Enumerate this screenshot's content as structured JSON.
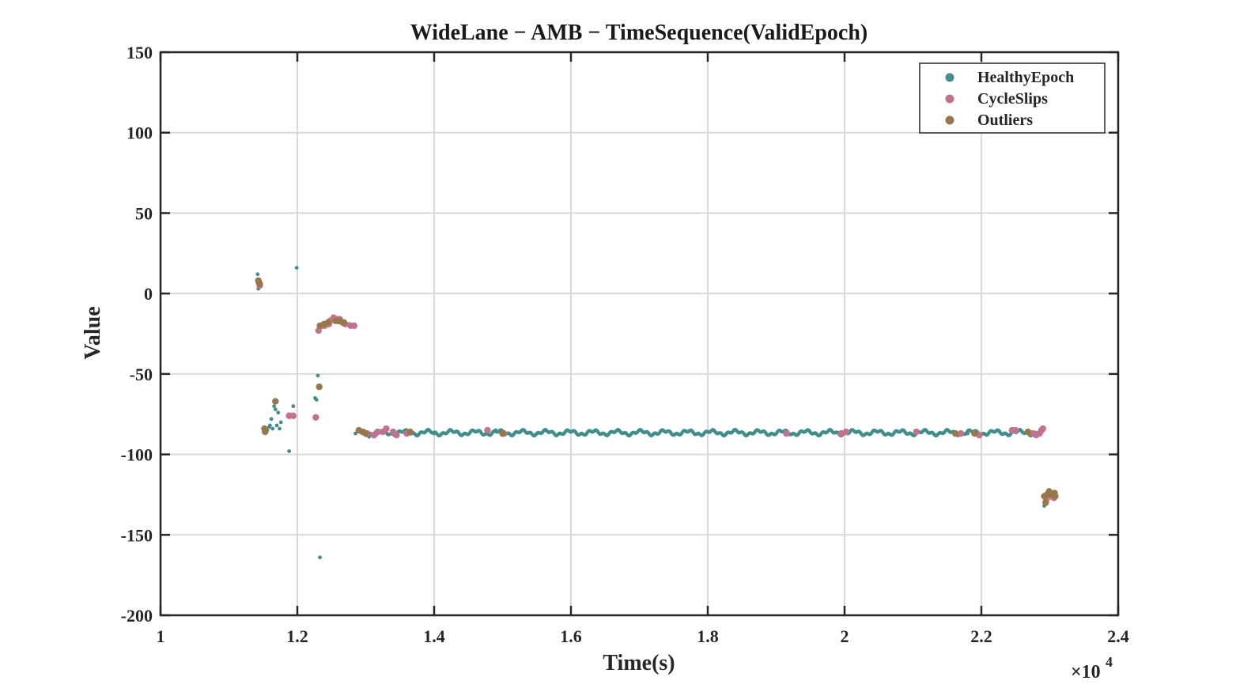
{
  "chart_data": {
    "type": "scatter",
    "title": "WideLane − AMB − TimeSequence(ValidEpoch)",
    "xlabel": "Time(s)",
    "ylabel": "Value",
    "x_multiplier_label": "×10",
    "x_multiplier_exponent": "4",
    "xlim": [
      10000,
      24000
    ],
    "ylim": [
      -200,
      150
    ],
    "xticks": [
      10000,
      12000,
      14000,
      16000,
      18000,
      20000,
      22000,
      24000
    ],
    "xtick_labels": [
      "1",
      "1.2",
      "1.4",
      "1.6",
      "1.8",
      "2",
      "2.2",
      "2.4"
    ],
    "yticks": [
      150,
      100,
      50,
      0,
      -50,
      -100,
      -150,
      -200
    ],
    "ytick_labels": [
      "150",
      "100",
      "50",
      "0",
      "-50",
      "-100",
      "-150",
      "-200"
    ],
    "grid": true,
    "legend_position": "top-right",
    "colors": {
      "HealthyEpoch": "#418e8a",
      "CycleSlips": "#c2728f",
      "Outliers": "#97784a",
      "grid": "#d9d9d9",
      "axis": "#262626"
    },
    "series": [
      {
        "name": "HealthyEpoch",
        "marker": "small-dot",
        "points": [
          [
            11420,
            12
          ],
          [
            11430,
            3
          ],
          [
            11440,
            6
          ],
          [
            11460,
            5
          ],
          [
            11560,
            -85
          ],
          [
            11590,
            -83
          ],
          [
            11600,
            -82
          ],
          [
            11620,
            -78
          ],
          [
            11640,
            -84
          ],
          [
            11660,
            -70
          ],
          [
            11680,
            -72
          ],
          [
            11700,
            -82
          ],
          [
            11720,
            -74
          ],
          [
            11740,
            -84
          ],
          [
            11760,
            -80
          ],
          [
            11880,
            -98
          ],
          [
            11940,
            -70
          ],
          [
            11990,
            16
          ],
          [
            12260,
            -65
          ],
          [
            12280,
            -66
          ],
          [
            12300,
            -51
          ],
          [
            12330,
            -164
          ],
          [
            12380,
            -20
          ],
          [
            12440,
            -19
          ],
          [
            12600,
            -18
          ],
          [
            12760,
            -19
          ],
          [
            12850,
            -87
          ],
          [
            12990,
            -87
          ],
          [
            13050,
            -89
          ],
          [
            13150,
            -88
          ],
          [
            13600,
            -86
          ],
          [
            14000,
            -87
          ],
          [
            14900,
            -85
          ],
          [
            21800,
            -87
          ],
          [
            22920,
            -132
          ]
        ]
      },
      {
        "name": "CycleSlips",
        "marker": "dot",
        "points": [
          [
            11450,
            5
          ],
          [
            11880,
            -76
          ],
          [
            11940,
            -76
          ],
          [
            12270,
            -77
          ],
          [
            12310,
            -23
          ],
          [
            12360,
            -20
          ],
          [
            12400,
            -20
          ],
          [
            12460,
            -19
          ],
          [
            12480,
            -17
          ],
          [
            12530,
            -15
          ],
          [
            12580,
            -16
          ],
          [
            12620,
            -16
          ],
          [
            12660,
            -18
          ],
          [
            12700,
            -19
          ],
          [
            12780,
            -20
          ],
          [
            12830,
            -20
          ],
          [
            12950,
            -86
          ],
          [
            13020,
            -87
          ],
          [
            13120,
            -88
          ],
          [
            13180,
            -86
          ],
          [
            13250,
            -86
          ],
          [
            13300,
            -84
          ],
          [
            13400,
            -86
          ],
          [
            13450,
            -88
          ],
          [
            13600,
            -87
          ],
          [
            14780,
            -85
          ],
          [
            15020,
            -87
          ],
          [
            19150,
            -87
          ],
          [
            19950,
            -87
          ],
          [
            20020,
            -86
          ],
          [
            21050,
            -86
          ],
          [
            21700,
            -87
          ],
          [
            21970,
            -88
          ],
          [
            22950,
            -128
          ],
          [
            23020,
            -126
          ],
          [
            23060,
            -127
          ],
          [
            22750,
            -87
          ],
          [
            22800,
            -88
          ],
          [
            22850,
            -87
          ],
          [
            22880,
            -85
          ],
          [
            22900,
            -84
          ],
          [
            22450,
            -85
          ],
          [
            22500,
            -85
          ]
        ]
      },
      {
        "name": "Outliers",
        "marker": "dot",
        "points": [
          [
            11430,
            8
          ],
          [
            11440,
            7
          ],
          [
            11450,
            6
          ],
          [
            11520,
            -84
          ],
          [
            11530,
            -86
          ],
          [
            11680,
            -67
          ],
          [
            12320,
            -58
          ],
          [
            12330,
            -20
          ],
          [
            12390,
            -19
          ],
          [
            12450,
            -18
          ],
          [
            12560,
            -17
          ],
          [
            12610,
            -17
          ],
          [
            12680,
            -18
          ],
          [
            12900,
            -85
          ],
          [
            12960,
            -86
          ],
          [
            13000,
            -87
          ],
          [
            13650,
            -86
          ],
          [
            15000,
            -87
          ],
          [
            21620,
            -87
          ],
          [
            21900,
            -87
          ],
          [
            22680,
            -86
          ],
          [
            22920,
            -126
          ],
          [
            22940,
            -130
          ],
          [
            22960,
            -125
          ],
          [
            22990,
            -123
          ],
          [
            23030,
            -125
          ],
          [
            23070,
            -124
          ],
          [
            23080,
            -126
          ]
        ]
      }
    ],
    "band": {
      "series": "HealthyEpoch",
      "x_start": 13000,
      "x_end": 22800,
      "y_mean": -86.5,
      "y_amplitude": 1.2
    }
  }
}
